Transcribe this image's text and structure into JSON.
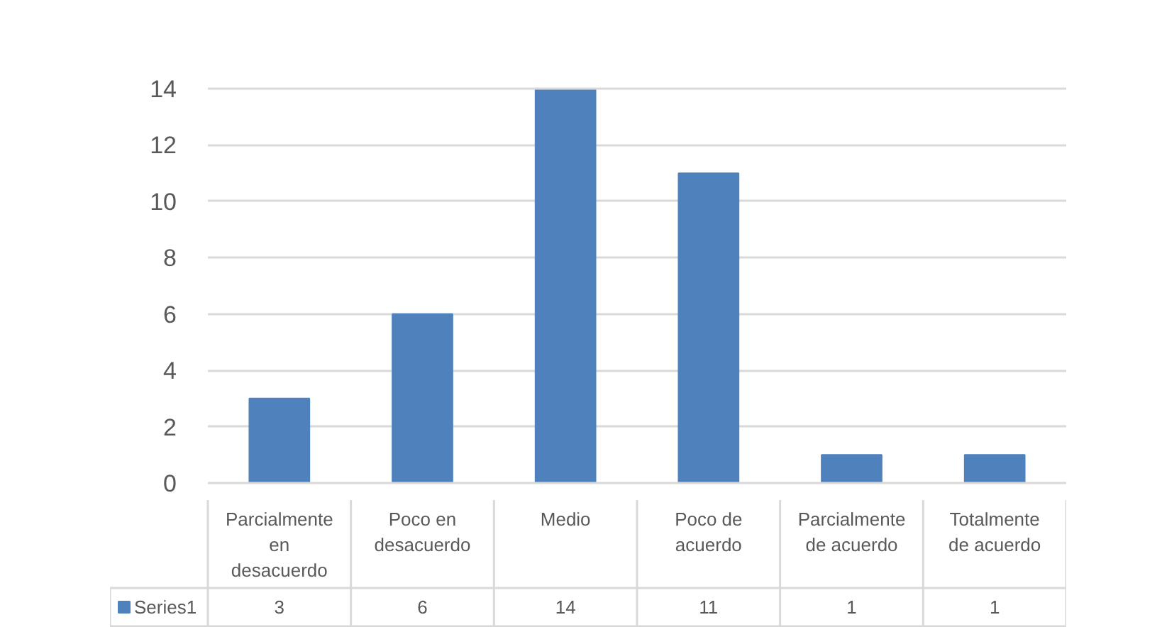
{
  "chart_data": {
    "type": "bar",
    "categories": [
      "Parcialmente en desacuerdo",
      "Poco en desacuerdo",
      "Medio",
      "Poco de acuerdo",
      "Parcialmente de acuerdo",
      "Totalmente de acuerdo"
    ],
    "series": [
      {
        "name": "Series1",
        "color": "#4f81bd",
        "values": [
          3,
          6,
          14,
          11,
          1,
          1
        ]
      }
    ],
    "ylim": [
      0,
      14
    ],
    "yticks": [
      0,
      2,
      4,
      6,
      8,
      10,
      12,
      14
    ],
    "grid": "y",
    "legend": "bottom",
    "data_labels": true
  }
}
